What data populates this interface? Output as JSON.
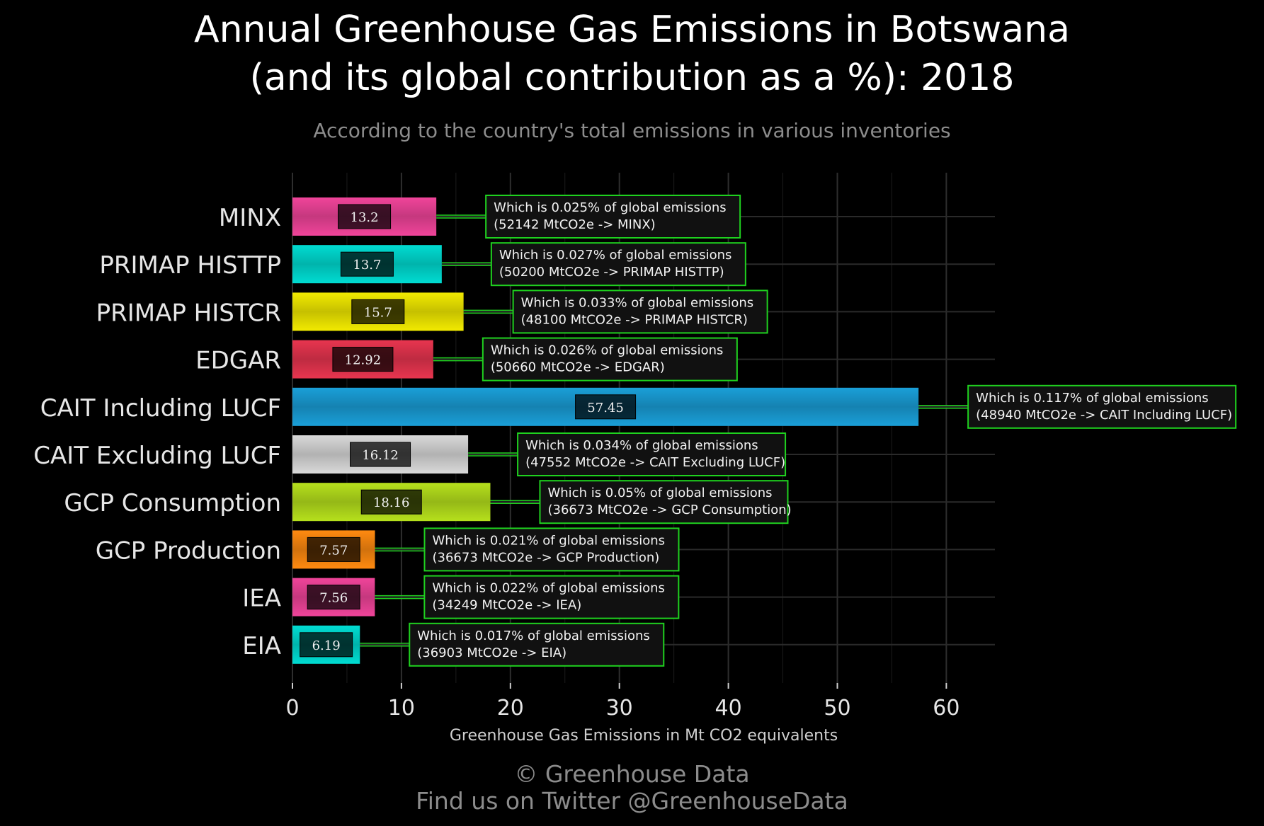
{
  "title_line1": "Annual Greenhouse Gas Emissions in Botswana",
  "title_line2": "(and its global contribution as a %): 2018",
  "subtitle": "According to the country's total emissions in various inventories",
  "footer_line1": "© Greenhouse Data",
  "footer_line2": "Find us on Twitter @GreenhouseData",
  "colors": {
    "background": "#000000",
    "grid": "#2a2a2a",
    "annotation_border": "#1fd11f",
    "annotation_fill": "#111111",
    "connector": "#1fd11f"
  },
  "chart_data": {
    "type": "bar",
    "orientation": "horizontal",
    "title": "Annual Greenhouse Gas Emissions in Botswana (and its global contribution as a %): 2018",
    "subtitle": "According to the country's total emissions in various inventories",
    "xlabel": "Greenhouse Gas Emissions in Mt CO2 equivalents",
    "ylabel": "",
    "xlim": [
      0,
      64
    ],
    "xticks": [
      0,
      10,
      20,
      30,
      40,
      50,
      60
    ],
    "grid": true,
    "categories": [
      "MINX",
      "PRIMAP HISTTP",
      "PRIMAP HISTCR",
      "EDGAR",
      "CAIT Including LUCF",
      "CAIT Excluding LUCF",
      "GCP Consumption",
      "GCP Production",
      "IEA",
      "EIA"
    ],
    "values": [
      13.2,
      13.7,
      15.7,
      12.92,
      57.45,
      16.12,
      18.16,
      7.57,
      7.56,
      6.19
    ],
    "value_labels": [
      "13.2",
      "13.7",
      "15.7",
      "12.92",
      "57.45",
      "16.12",
      "18.16",
      "7.57",
      "7.56",
      "6.19"
    ],
    "bar_colors": [
      "#f0449a",
      "#00dcd2",
      "#f2ea00",
      "#e8354f",
      "#1a9fd8",
      "#d9d9d9",
      "#b6e01c",
      "#ff8a10",
      "#f0449a",
      "#00dcd2"
    ],
    "annotations": [
      {
        "line1": "Which is 0.025% of global emissions",
        "line2": "(52142 MtCO2e -> MINX)"
      },
      {
        "line1": "Which is 0.027% of global emissions",
        "line2": "(50200 MtCO2e -> PRIMAP HISTTP)"
      },
      {
        "line1": "Which is 0.033% of global emissions",
        "line2": "(48100 MtCO2e -> PRIMAP HISTCR)"
      },
      {
        "line1": "Which is 0.026% of global emissions",
        "line2": "(50660 MtCO2e -> EDGAR)"
      },
      {
        "line1": "Which is 0.117% of global emissions",
        "line2": "(48940 MtCO2e -> CAIT Including LUCF)"
      },
      {
        "line1": "Which is 0.034% of global emissions",
        "line2": "(47552 MtCO2e -> CAIT Excluding LUCF)"
      },
      {
        "line1": "Which is 0.05% of global emissions",
        "line2": "(36673 MtCO2e -> GCP Consumption)"
      },
      {
        "line1": "Which is 0.021% of global emissions",
        "line2": "(36673 MtCO2e -> GCP Production)"
      },
      {
        "line1": "Which is 0.022% of global emissions",
        "line2": "(34249 MtCO2e -> IEA)"
      },
      {
        "line1": "Which is 0.017% of global emissions",
        "line2": "(36903 MtCO2e -> EIA)"
      }
    ]
  }
}
